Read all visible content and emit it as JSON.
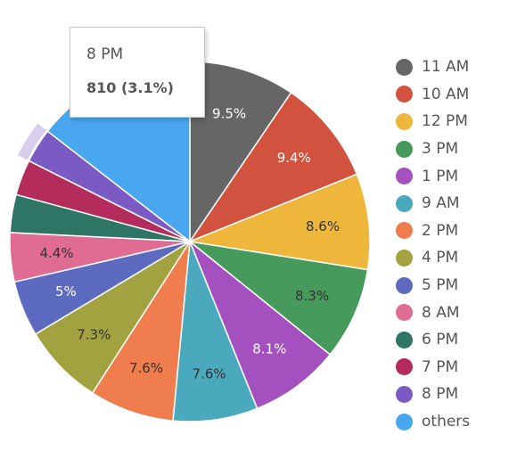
{
  "chart_data": {
    "type": "pie",
    "categories": [
      "11 AM",
      "10 AM",
      "12 PM",
      "3 PM",
      "1 PM",
      "9 AM",
      "2 PM",
      "4 PM",
      "5 PM",
      "8 AM",
      "6 PM",
      "7 PM",
      "8 PM",
      "others"
    ],
    "values": [
      9.5,
      9.4,
      8.6,
      8.3,
      8.1,
      7.6,
      7.6,
      7.3,
      5,
      4.4,
      3.4,
      3.2,
      3.1,
      14.5
    ],
    "data_labels": [
      "9.5%",
      "9.4%",
      "8.6%",
      "8.3%",
      "8.1%",
      "7.6%",
      "7.6%",
      "7.3%",
      "5%",
      "4.4%",
      "",
      "",
      "",
      ""
    ],
    "colors": [
      "#666666",
      "#d1533f",
      "#eeb73c",
      "#469b5c",
      "#a450be",
      "#4aa9bd",
      "#ef7d4e",
      "#a3a240",
      "#5c6bc0",
      "#e06c94",
      "#2e7565",
      "#b32c5c",
      "#7c5ac4",
      "#49a7f0"
    ],
    "label_colors": [
      "#ffffff",
      "#ffffff",
      "#333333",
      "#333333",
      "#ffffff",
      "#333333",
      "#333333",
      "#333333",
      "#ffffff",
      "#333333",
      "#ffffff",
      "#ffffff",
      "#ffffff",
      "#ffffff"
    ],
    "legend_placement": "right",
    "hovered_slice": "8 PM"
  },
  "tooltip": {
    "title": "8 PM",
    "value": "810 (3.1%)"
  }
}
